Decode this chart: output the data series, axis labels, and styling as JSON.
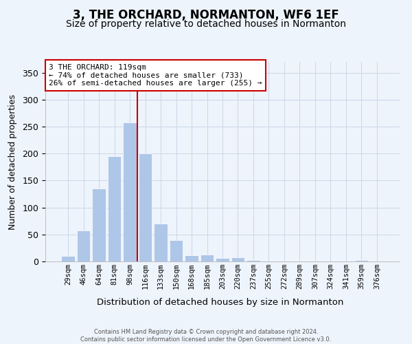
{
  "title": "3, THE ORCHARD, NORMANTON, WF6 1EF",
  "subtitle": "Size of property relative to detached houses in Normanton",
  "xlabel": "Distribution of detached houses by size in Normanton",
  "ylabel": "Number of detached properties",
  "categories": [
    "29sqm",
    "46sqm",
    "64sqm",
    "81sqm",
    "98sqm",
    "116sqm",
    "133sqm",
    "150sqm",
    "168sqm",
    "185sqm",
    "203sqm",
    "220sqm",
    "237sqm",
    "255sqm",
    "272sqm",
    "289sqm",
    "307sqm",
    "324sqm",
    "341sqm",
    "359sqm",
    "376sqm"
  ],
  "values": [
    10,
    57,
    135,
    195,
    258,
    200,
    70,
    40,
    12,
    13,
    6,
    8,
    3,
    0,
    0,
    0,
    0,
    0,
    0,
    3,
    0
  ],
  "bar_color": "#aec6e8",
  "bar_edge_color": "#ffffff",
  "grid_color": "#c8d8e8",
  "background_color": "#eef4fb",
  "vline_x": 4.5,
  "vline_color": "#cc0000",
  "annotation_line1": "3 THE ORCHARD: 119sqm",
  "annotation_line2": "← 74% of detached houses are smaller (733)",
  "annotation_line3": "26% of semi-detached houses are larger (255) →",
  "annotation_box_facecolor": "#ffffff",
  "annotation_box_edgecolor": "#cc0000",
  "footer_line1": "Contains HM Land Registry data © Crown copyright and database right 2024.",
  "footer_line2": "Contains public sector information licensed under the Open Government Licence v3.0.",
  "ylim": [
    0,
    370
  ],
  "yticks": [
    0,
    50,
    100,
    150,
    200,
    250,
    300,
    350
  ]
}
